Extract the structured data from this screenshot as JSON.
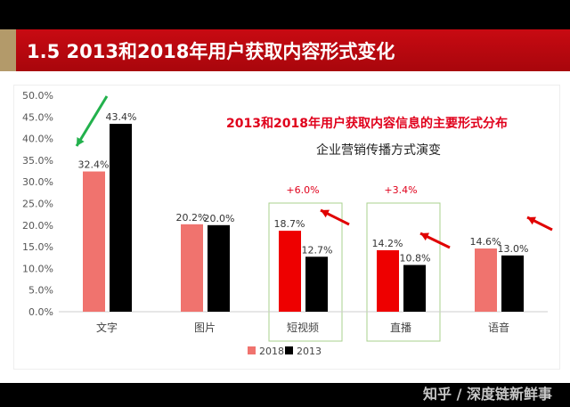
{
  "header": {
    "title": "1.5 2013和2018年用户获取内容形式变化"
  },
  "watermark": "知乎 / 深度链新鲜事",
  "chart_data": {
    "type": "bar",
    "title": "2013和2018年用户获取内容信息的主要形式分布",
    "subtitle": "企业营销传播方式演变",
    "categories": [
      "文字",
      "图片",
      "短视频",
      "直播",
      "语音"
    ],
    "series": [
      {
        "name": "2018",
        "values": [
          32.4,
          20.2,
          18.7,
          14.2,
          14.6
        ],
        "color": "#f0736e",
        "highlight_color": "#ee0000"
      },
      {
        "name": "2013",
        "values": [
          43.4,
          20.0,
          12.7,
          10.8,
          13.0
        ],
        "color": "#000000"
      }
    ],
    "data_labels": {
      "2018": [
        "32.4%",
        "20.2%",
        "18.7%",
        "14.2%",
        "14.6%"
      ],
      "2013": [
        "43.4%",
        "20.0%",
        "12.7%",
        "10.8%",
        "13.0%"
      ]
    },
    "highlighted_categories": [
      "短视频",
      "直播"
    ],
    "annotations": [
      {
        "category": "短视频",
        "text": "+6.0%"
      },
      {
        "category": "直播",
        "text": "+3.4%"
      }
    ],
    "yticks": [
      "0.0%",
      "5.0%",
      "10.0%",
      "15.0%",
      "20.0%",
      "25.0%",
      "30.0%",
      "35.0%",
      "40.0%",
      "45.0%",
      "50.0%"
    ],
    "ylim": [
      0,
      50
    ],
    "grid": false,
    "legend": "bottom",
    "colors": {
      "title": "#e0001b",
      "annotation": "#e0001b",
      "box": "#a8d08d",
      "arrow_green": "#22b14c",
      "arrow_red": "#e00000"
    }
  }
}
